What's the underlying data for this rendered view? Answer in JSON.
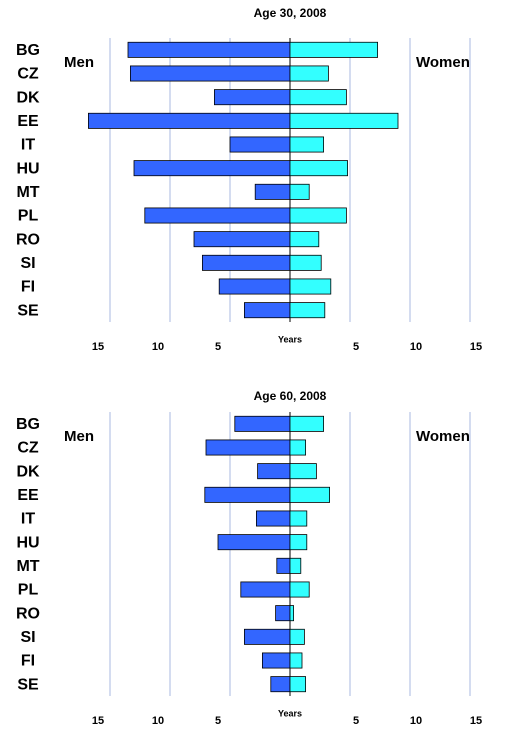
{
  "chart_data": [
    {
      "type": "bar",
      "orientation": "horizontal",
      "title": "Age 30, 2008",
      "xlabel": "Years",
      "categories": [
        "BG",
        "CZ",
        "DK",
        "EE",
        "IT",
        "HU",
        "MT",
        "PL",
        "RO",
        "SI",
        "FI",
        "SE"
      ],
      "series": [
        {
          "name": "Men",
          "color": "#3366ff",
          "values": [
            -13.5,
            -13.3,
            -6.3,
            -16.8,
            -5.0,
            -13.0,
            -2.9,
            -12.1,
            -8.0,
            -7.3,
            -5.9,
            -3.8
          ]
        },
        {
          "name": "Women",
          "color": "#33ffff",
          "values": [
            7.3,
            3.2,
            4.7,
            9.0,
            2.8,
            4.8,
            1.6,
            4.7,
            2.4,
            2.6,
            3.4,
            2.9
          ]
        }
      ],
      "xlim": [
        -20,
        18.5
      ],
      "xticks": [
        {
          "value": -15,
          "label": "15"
        },
        {
          "value": -10,
          "label": "10"
        },
        {
          "value": -5,
          "label": "5"
        },
        5,
        10,
        15
      ],
      "grid": true
    },
    {
      "type": "bar",
      "orientation": "horizontal",
      "title": "Age 60, 2008",
      "xlabel": "Years",
      "categories": [
        "BG",
        "CZ",
        "DK",
        "EE",
        "IT",
        "HU",
        "MT",
        "PL",
        "RO",
        "SI",
        "FI",
        "SE"
      ],
      "series": [
        {
          "name": "Men",
          "color": "#3366ff",
          "values": [
            -4.6,
            -7.0,
            -2.7,
            -7.1,
            -2.8,
            -6.0,
            -1.1,
            -4.1,
            -1.2,
            -3.8,
            -2.3,
            -1.6
          ]
        },
        {
          "name": "Women",
          "color": "#33ffff",
          "values": [
            2.8,
            1.3,
            2.2,
            3.3,
            1.4,
            1.4,
            0.9,
            1.6,
            0.3,
            1.2,
            1.0,
            1.3
          ]
        }
      ],
      "xlim": [
        -20,
        18.5
      ],
      "xticks": [
        {
          "value": -15,
          "label": "15"
        },
        {
          "value": -10,
          "label": "10"
        },
        {
          "value": -5,
          "label": "5"
        },
        5,
        10,
        15
      ],
      "grid": true
    }
  ]
}
